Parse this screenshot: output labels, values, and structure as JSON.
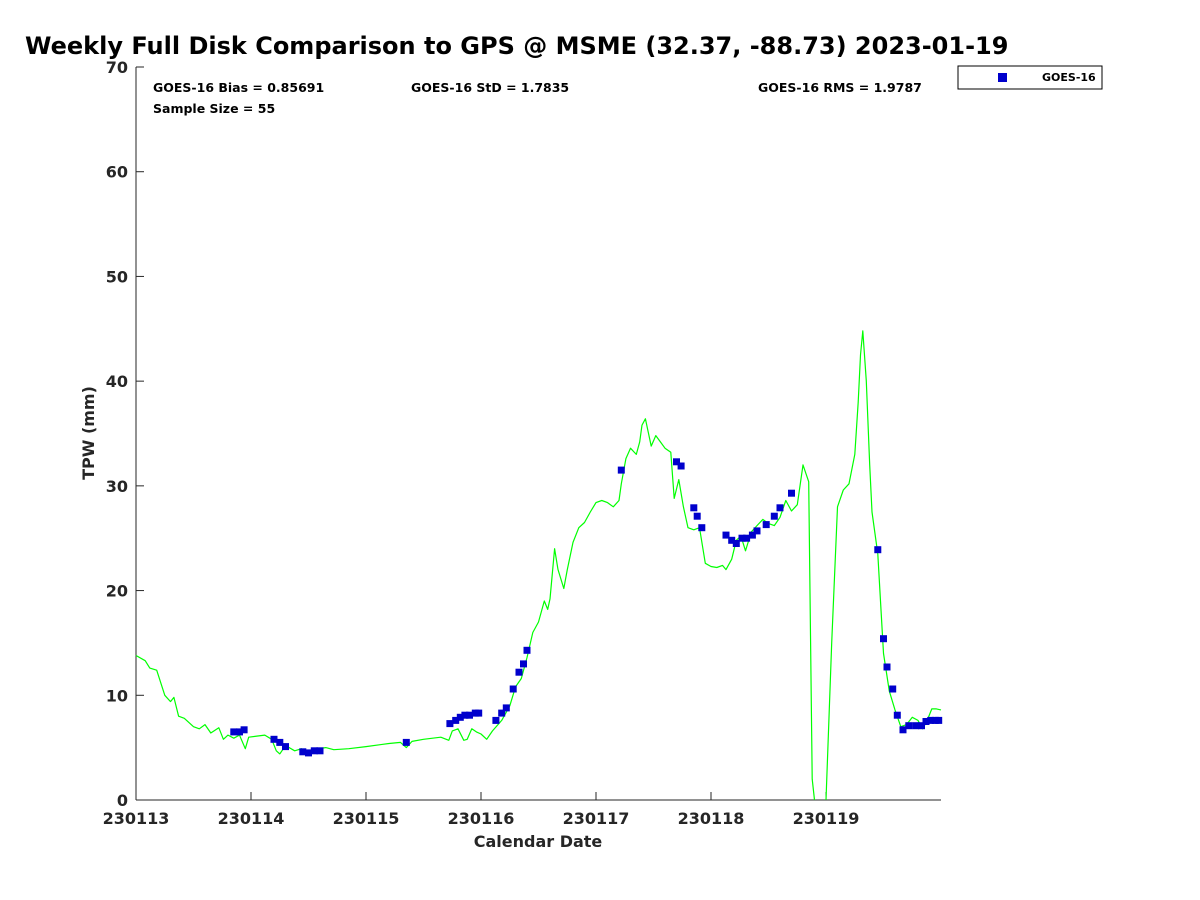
{
  "chart_data": {
    "type": "scatter",
    "title": "Weekly Full Disk Comparison to GPS @ MSME (32.37, -88.73) 2023-01-19",
    "xlabel": "Calendar Date",
    "ylabel": "TPW (mm)",
    "xlim": [
      0,
      7
    ],
    "ylim": [
      0,
      70
    ],
    "x_tick_values": [
      0,
      1,
      2,
      3,
      4,
      5,
      6
    ],
    "x_tick_labels": [
      "230113",
      "230114",
      "230115",
      "230116",
      "230117",
      "230118",
      "230119"
    ],
    "y_tick_values": [
      0,
      10,
      20,
      30,
      40,
      50,
      60,
      70
    ],
    "y_tick_labels": [
      "0",
      "10",
      "20",
      "30",
      "40",
      "50",
      "60",
      "70"
    ],
    "x_unit": "days since 230113 00Z",
    "grid": false,
    "legend_position": "top-right, outside plot",
    "stats": {
      "bias": "GOES-16 Bias = 0.85691",
      "std": "GOES-16 StD = 1.7835",
      "rms": "GOES-16 RMS = 1.9787",
      "sample": "Sample Size = 55"
    },
    "gps_line": {
      "color": "#00ff00",
      "points": [
        [
          0.0,
          13.8
        ],
        [
          0.08,
          13.3
        ],
        [
          0.12,
          12.6
        ],
        [
          0.18,
          12.4
        ],
        [
          0.25,
          10.0
        ],
        [
          0.3,
          9.4
        ],
        [
          0.33,
          9.8
        ],
        [
          0.37,
          8.0
        ],
        [
          0.42,
          7.8
        ],
        [
          0.5,
          7.0
        ],
        [
          0.55,
          6.8
        ],
        [
          0.6,
          7.2
        ],
        [
          0.65,
          6.4
        ],
        [
          0.72,
          6.9
        ],
        [
          0.76,
          5.8
        ],
        [
          0.8,
          6.2
        ],
        [
          0.85,
          5.9
        ],
        [
          0.9,
          6.2
        ],
        [
          0.95,
          4.9
        ],
        [
          0.98,
          6.0
        ],
        [
          1.05,
          6.1
        ],
        [
          1.12,
          6.2
        ],
        [
          1.18,
          5.8
        ],
        [
          1.22,
          4.7
        ],
        [
          1.25,
          4.4
        ],
        [
          1.3,
          5.2
        ],
        [
          1.38,
          4.7
        ],
        [
          1.44,
          4.9
        ],
        [
          1.48,
          4.3
        ],
        [
          1.52,
          4.6
        ],
        [
          1.58,
          4.9
        ],
        [
          1.65,
          5.0
        ],
        [
          1.72,
          4.8
        ],
        [
          1.85,
          4.9
        ],
        [
          2.0,
          5.1
        ],
        [
          2.2,
          5.4
        ],
        [
          2.3,
          5.5
        ],
        [
          2.35,
          5.0
        ],
        [
          2.4,
          5.6
        ],
        [
          2.5,
          5.8
        ],
        [
          2.65,
          6.0
        ],
        [
          2.72,
          5.7
        ],
        [
          2.75,
          6.6
        ],
        [
          2.8,
          6.8
        ],
        [
          2.85,
          5.7
        ],
        [
          2.88,
          5.8
        ],
        [
          2.92,
          6.8
        ],
        [
          2.96,
          6.5
        ],
        [
          3.0,
          6.3
        ],
        [
          3.05,
          5.8
        ],
        [
          3.1,
          6.6
        ],
        [
          3.18,
          7.6
        ],
        [
          3.25,
          9.0
        ],
        [
          3.3,
          10.8
        ],
        [
          3.35,
          11.6
        ],
        [
          3.4,
          13.6
        ],
        [
          3.45,
          16.0
        ],
        [
          3.5,
          17.0
        ],
        [
          3.55,
          19.0
        ],
        [
          3.58,
          18.2
        ],
        [
          3.6,
          19.2
        ],
        [
          3.64,
          24.0
        ],
        [
          3.67,
          22.0
        ],
        [
          3.72,
          20.2
        ],
        [
          3.75,
          22.0
        ],
        [
          3.8,
          24.6
        ],
        [
          3.85,
          26.0
        ],
        [
          3.9,
          26.5
        ],
        [
          3.95,
          27.5
        ],
        [
          4.0,
          28.4
        ],
        [
          4.05,
          28.6
        ],
        [
          4.1,
          28.4
        ],
        [
          4.15,
          28.0
        ],
        [
          4.2,
          28.6
        ],
        [
          4.22,
          30.2
        ],
        [
          4.26,
          32.6
        ],
        [
          4.3,
          33.6
        ],
        [
          4.35,
          33.0
        ],
        [
          4.38,
          34.2
        ],
        [
          4.4,
          35.8
        ],
        [
          4.43,
          36.4
        ],
        [
          4.48,
          33.8
        ],
        [
          4.52,
          34.8
        ],
        [
          4.56,
          34.2
        ],
        [
          4.6,
          33.6
        ],
        [
          4.65,
          33.2
        ],
        [
          4.68,
          28.8
        ],
        [
          4.72,
          30.6
        ],
        [
          4.76,
          28.0
        ],
        [
          4.8,
          26.0
        ],
        [
          4.85,
          25.8
        ],
        [
          4.9,
          26.0
        ],
        [
          4.95,
          22.6
        ],
        [
          5.0,
          22.3
        ],
        [
          5.05,
          22.2
        ],
        [
          5.1,
          22.4
        ],
        [
          5.13,
          22.0
        ],
        [
          5.18,
          23.0
        ],
        [
          5.22,
          24.8
        ],
        [
          5.26,
          25.2
        ],
        [
          5.3,
          23.8
        ],
        [
          5.35,
          25.6
        ],
        [
          5.4,
          26.2
        ],
        [
          5.45,
          26.8
        ],
        [
          5.5,
          26.4
        ],
        [
          5.55,
          26.2
        ],
        [
          5.6,
          27.0
        ],
        [
          5.65,
          28.6
        ],
        [
          5.7,
          27.6
        ],
        [
          5.75,
          28.2
        ],
        [
          5.8,
          32.0
        ],
        [
          5.85,
          30.4
        ],
        [
          5.88,
          2.0
        ],
        [
          5.9,
          0.0
        ]
      ]
    },
    "gps_line_2": {
      "points": [
        [
          6.0,
          0.0
        ],
        [
          6.05,
          15.0
        ],
        [
          6.1,
          28.0
        ],
        [
          6.15,
          29.6
        ],
        [
          6.2,
          30.2
        ],
        [
          6.25,
          33.0
        ],
        [
          6.28,
          38.0
        ],
        [
          6.3,
          42.5
        ],
        [
          6.32,
          44.8
        ],
        [
          6.35,
          40.0
        ],
        [
          6.38,
          32.0
        ],
        [
          6.4,
          27.5
        ],
        [
          6.45,
          23.5
        ],
        [
          6.5,
          14.0
        ],
        [
          6.55,
          10.4
        ],
        [
          6.6,
          8.6
        ],
        [
          6.65,
          7.0
        ],
        [
          6.7,
          7.2
        ],
        [
          6.75,
          7.9
        ],
        [
          6.8,
          7.6
        ],
        [
          6.84,
          6.8
        ],
        [
          6.88,
          7.6
        ],
        [
          6.92,
          8.7
        ],
        [
          6.96,
          8.7
        ],
        [
          7.0,
          8.6
        ]
      ]
    },
    "series": [
      {
        "name": "GOES-16",
        "color": "#0000cc",
        "points": [
          [
            0.85,
            6.5
          ],
          [
            0.9,
            6.5
          ],
          [
            0.94,
            6.7
          ],
          [
            1.2,
            5.8
          ],
          [
            1.25,
            5.5
          ],
          [
            1.3,
            5.1
          ],
          [
            1.45,
            4.6
          ],
          [
            1.5,
            4.5
          ],
          [
            1.55,
            4.7
          ],
          [
            1.6,
            4.7
          ],
          [
            2.35,
            5.5
          ],
          [
            2.73,
            7.3
          ],
          [
            2.78,
            7.6
          ],
          [
            2.82,
            7.9
          ],
          [
            2.86,
            8.1
          ],
          [
            2.9,
            8.1
          ],
          [
            2.95,
            8.3
          ],
          [
            2.98,
            8.3
          ],
          [
            3.13,
            7.6
          ],
          [
            3.18,
            8.3
          ],
          [
            3.22,
            8.8
          ],
          [
            3.28,
            10.6
          ],
          [
            3.33,
            12.2
          ],
          [
            3.37,
            13.0
          ],
          [
            3.4,
            14.3
          ],
          [
            4.22,
            31.5
          ],
          [
            4.7,
            32.3
          ],
          [
            4.74,
            31.9
          ],
          [
            4.85,
            27.9
          ],
          [
            4.88,
            27.1
          ],
          [
            4.92,
            26.0
          ],
          [
            5.13,
            25.3
          ],
          [
            5.18,
            24.8
          ],
          [
            5.22,
            24.5
          ],
          [
            5.27,
            25.0
          ],
          [
            5.31,
            25.0
          ],
          [
            5.36,
            25.3
          ],
          [
            5.4,
            25.7
          ],
          [
            5.48,
            26.3
          ],
          [
            5.55,
            27.1
          ],
          [
            5.6,
            27.9
          ],
          [
            5.7,
            29.3
          ],
          [
            6.45,
            23.9
          ],
          [
            6.5,
            15.4
          ],
          [
            6.53,
            12.7
          ],
          [
            6.58,
            10.6
          ],
          [
            6.62,
            8.1
          ],
          [
            6.67,
            6.7
          ],
          [
            6.72,
            7.1
          ],
          [
            6.78,
            7.1
          ],
          [
            6.83,
            7.1
          ],
          [
            6.87,
            7.5
          ],
          [
            6.91,
            7.6
          ],
          [
            6.95,
            7.6
          ],
          [
            6.98,
            7.6
          ]
        ]
      }
    ]
  }
}
